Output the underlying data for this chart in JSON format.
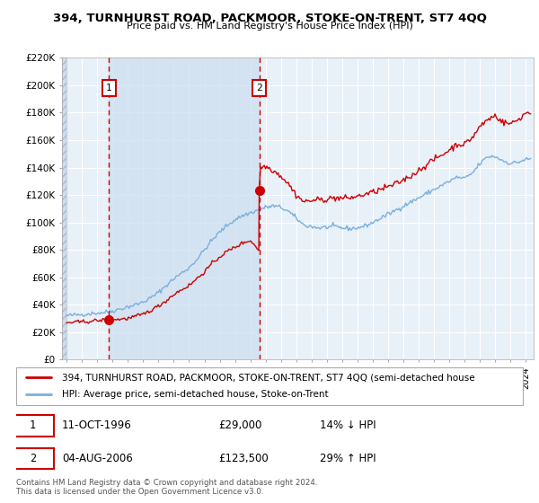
{
  "title": "394, TURNHURST ROAD, PACKMOOR, STOKE-ON-TRENT, ST7 4QQ",
  "subtitle": "Price paid vs. HM Land Registry's House Price Index (HPI)",
  "ylim": [
    0,
    220000
  ],
  "yticks": [
    0,
    20000,
    40000,
    60000,
    80000,
    100000,
    120000,
    140000,
    160000,
    180000,
    200000,
    220000
  ],
  "ytick_labels": [
    "£0",
    "£20K",
    "£40K",
    "£60K",
    "£80K",
    "£100K",
    "£120K",
    "£140K",
    "£160K",
    "£180K",
    "£200K",
    "£220K"
  ],
  "xlim_start": 1993.7,
  "xlim_end": 2024.5,
  "purchase1_x": 1996.78,
  "purchase1_y": 29000,
  "purchase2_x": 2006.58,
  "purchase2_y": 123500,
  "red_line_color": "#cc0000",
  "blue_line_color": "#7aafde",
  "annotation_box_color": "#cc0000",
  "chart_bg_color": "#e8f0f8",
  "shaded_region_color": "#d0e0f0",
  "grid_color": "#ffffff",
  "hatch_bg_color": "#d0dde8",
  "legend_line1": "394, TURNHURST ROAD, PACKMOOR, STOKE-ON-TRENT, ST7 4QQ (semi-detached house",
  "legend_line2": "HPI: Average price, semi-detached house, Stoke-on-Trent",
  "table_row1": [
    "1",
    "11-OCT-1996",
    "£29,000",
    "14% ↓ HPI"
  ],
  "table_row2": [
    "2",
    "04-AUG-2006",
    "£123,500",
    "29% ↑ HPI"
  ],
  "footer1": "Contains HM Land Registry data © Crown copyright and database right 2024.",
  "footer2": "This data is licensed under the Open Government Licence v3.0.",
  "hpi_years": [
    1994,
    1994.5,
    1995,
    1995.5,
    1996,
    1996.5,
    1997,
    1997.5,
    1998,
    1998.5,
    1999,
    1999.5,
    2000,
    2000.5,
    2001,
    2001.5,
    2002,
    2002.5,
    2003,
    2003.5,
    2004,
    2004.5,
    2005,
    2005.5,
    2006,
    2006.5,
    2007,
    2007.5,
    2008,
    2008.5,
    2009,
    2009.5,
    2010,
    2010.5,
    2011,
    2011.5,
    2012,
    2012.5,
    2013,
    2013.5,
    2014,
    2014.5,
    2015,
    2015.5,
    2016,
    2016.5,
    2017,
    2017.5,
    2018,
    2018.5,
    2019,
    2019.5,
    2020,
    2020.5,
    2021,
    2021.5,
    2022,
    2022.5,
    2023,
    2023.5,
    2024
  ],
  "hpi_prices": [
    32000,
    32500,
    33000,
    33500,
    34000,
    34500,
    35500,
    37000,
    38500,
    40000,
    42000,
    45000,
    49000,
    54000,
    59000,
    63000,
    67000,
    73000,
    80000,
    87000,
    93000,
    98000,
    102000,
    105000,
    107000,
    109000,
    111000,
    112000,
    111000,
    108000,
    103000,
    98000,
    97000,
    96000,
    96500,
    97000,
    96000,
    95500,
    96000,
    97500,
    100000,
    103000,
    106000,
    109000,
    112000,
    115000,
    118000,
    121000,
    124000,
    127000,
    130000,
    133000,
    132000,
    136000,
    143000,
    148000,
    148000,
    145000,
    143000,
    144000,
    146000
  ],
  "red_years": [
    1994,
    1994.5,
    1995,
    1995.5,
    1996,
    1996.5,
    1997,
    1997.5,
    1998,
    1998.5,
    1999,
    1999.5,
    2000,
    2000.5,
    2001,
    2001.5,
    2002,
    2002.5,
    2003,
    2003.5,
    2004,
    2004.5,
    2005,
    2005.5,
    2006,
    2006.55,
    2006.58,
    2006.61,
    2007,
    2007.5,
    2008,
    2008.5,
    2009,
    2009.5,
    2010,
    2010.5,
    2011,
    2011.5,
    2012,
    2012.5,
    2013,
    2013.5,
    2014,
    2014.5,
    2015,
    2015.5,
    2016,
    2016.5,
    2017,
    2017.5,
    2018,
    2018.5,
    2019,
    2019.5,
    2020,
    2020.5,
    2021,
    2021.5,
    2022,
    2022.5,
    2023,
    2023.5,
    2024
  ],
  "red_prices": [
    27000,
    27200,
    27500,
    28000,
    28500,
    28800,
    29000,
    29500,
    30000,
    31500,
    33000,
    36000,
    39000,
    43000,
    47500,
    51000,
    54000,
    59000,
    64000,
    70000,
    75000,
    79000,
    82000,
    85000,
    87000,
    80000,
    123500,
    140000,
    141000,
    138000,
    134000,
    128000,
    120000,
    115000,
    116000,
    116500,
    117000,
    118000,
    117500,
    118000,
    119000,
    120500,
    122000,
    124000,
    126000,
    128000,
    131000,
    134000,
    138000,
    142000,
    146000,
    149000,
    153000,
    157000,
    157000,
    162000,
    170000,
    175000,
    178000,
    173000,
    172000,
    175000,
    180000
  ]
}
